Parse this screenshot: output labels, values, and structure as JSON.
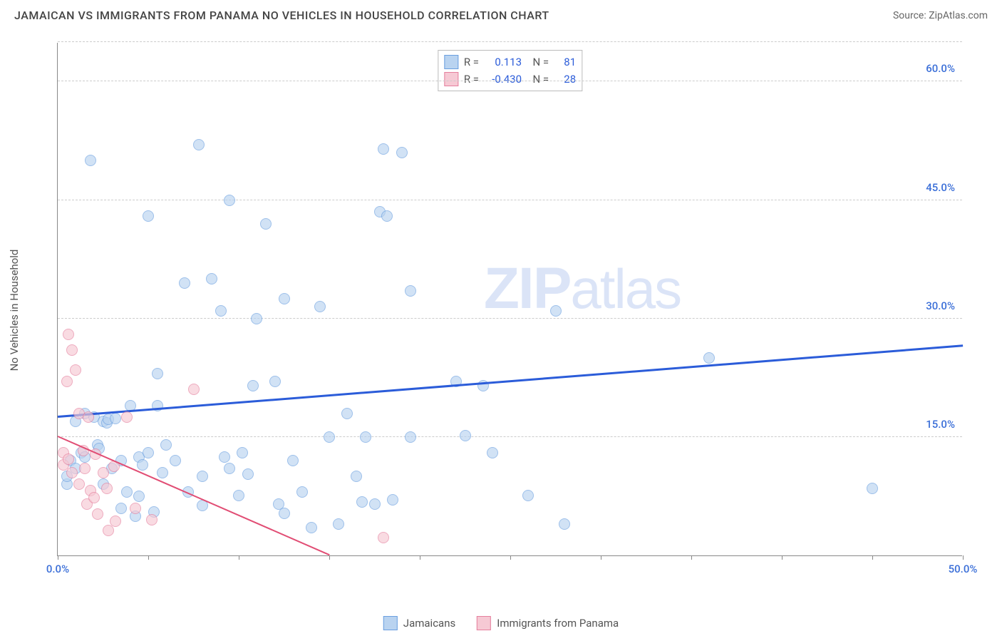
{
  "title": "JAMAICAN VS IMMIGRANTS FROM PANAMA NO VEHICLES IN HOUSEHOLD CORRELATION CHART",
  "source": "Source: ZipAtlas.com",
  "y_axis_label": "No Vehicles in Household",
  "watermark": "ZIPatlas",
  "chart": {
    "type": "scatter",
    "x_min": 0,
    "x_max": 50,
    "y_min": 0,
    "y_max": 65,
    "background_color": "#ffffff",
    "grid_color": "#cccccc",
    "axis_color": "#888888",
    "tick_label_color": "#3b6fd8",
    "y_gridlines": [
      15,
      30,
      45,
      60,
      65
    ],
    "y_tick_labels": [
      {
        "v": 15,
        "label": "15.0%"
      },
      {
        "v": 30,
        "label": "30.0%"
      },
      {
        "v": 45,
        "label": "45.0%"
      },
      {
        "v": 60,
        "label": "60.0%"
      }
    ],
    "x_ticks": [
      0,
      5,
      10,
      15,
      20,
      25,
      30,
      35,
      40,
      45,
      50
    ],
    "x_tick_labels": [
      {
        "v": 0,
        "label": "0.0%"
      },
      {
        "v": 50,
        "label": "50.0%"
      }
    ],
    "point_radius": 8,
    "point_stroke_width": 1.5,
    "series": [
      {
        "name": "Jamaicans",
        "fill": "#b9d3f0",
        "stroke": "#6a9fe0",
        "fill_opacity": 0.65,
        "R": "0.113",
        "N": "81",
        "trend": {
          "color": "#2b5cd9",
          "width": 2.5,
          "x1": 0,
          "y1": 17.5,
          "x2": 50,
          "y2": 26.5
        },
        "points": [
          [
            0.5,
            9
          ],
          [
            0.5,
            10
          ],
          [
            0.7,
            12
          ],
          [
            1,
            11
          ],
          [
            1,
            17
          ],
          [
            1.3,
            13
          ],
          [
            1.5,
            18
          ],
          [
            1.5,
            12.5
          ],
          [
            1.8,
            50
          ],
          [
            2,
            17.5
          ],
          [
            2.2,
            14
          ],
          [
            2.3,
            13.5
          ],
          [
            2.5,
            17
          ],
          [
            2.5,
            9
          ],
          [
            2.7,
            16.8
          ],
          [
            2.8,
            17.2
          ],
          [
            3,
            11
          ],
          [
            3.2,
            17.3
          ],
          [
            3.5,
            6
          ],
          [
            3.5,
            12
          ],
          [
            3.8,
            8
          ],
          [
            4,
            19
          ],
          [
            4.3,
            5
          ],
          [
            4.5,
            7.5
          ],
          [
            4.5,
            12.5
          ],
          [
            4.7,
            11.5
          ],
          [
            5,
            43
          ],
          [
            5,
            13
          ],
          [
            5.3,
            5.5
          ],
          [
            5.5,
            23
          ],
          [
            5.5,
            19
          ],
          [
            5.8,
            10.5
          ],
          [
            6,
            14
          ],
          [
            6.5,
            12
          ],
          [
            7,
            34.5
          ],
          [
            7.2,
            8
          ],
          [
            7.8,
            52
          ],
          [
            8,
            10
          ],
          [
            8,
            6.3
          ],
          [
            8.5,
            35
          ],
          [
            9,
            31
          ],
          [
            9.2,
            12.5
          ],
          [
            9.5,
            11
          ],
          [
            9.5,
            45
          ],
          [
            10,
            7.6
          ],
          [
            10.2,
            13
          ],
          [
            10.5,
            10.3
          ],
          [
            10.8,
            21.5
          ],
          [
            11,
            30
          ],
          [
            11.5,
            42
          ],
          [
            12,
            22
          ],
          [
            12.2,
            6.5
          ],
          [
            12.5,
            5.3
          ],
          [
            12.5,
            32.5
          ],
          [
            13,
            12
          ],
          [
            13.5,
            8
          ],
          [
            14,
            3.5
          ],
          [
            14.5,
            31.5
          ],
          [
            15,
            15
          ],
          [
            15.5,
            4
          ],
          [
            16,
            18
          ],
          [
            16.5,
            10
          ],
          [
            16.8,
            6.8
          ],
          [
            17,
            15
          ],
          [
            17.5,
            6.5
          ],
          [
            17.8,
            43.5
          ],
          [
            18,
            51.5
          ],
          [
            18.2,
            43
          ],
          [
            18.5,
            7
          ],
          [
            19,
            51
          ],
          [
            19.5,
            15
          ],
          [
            19.5,
            33.5
          ],
          [
            22,
            22
          ],
          [
            22.5,
            15.2
          ],
          [
            23.5,
            21.5
          ],
          [
            24,
            13
          ],
          [
            26,
            7.6
          ],
          [
            27.5,
            31
          ],
          [
            28,
            4
          ],
          [
            36,
            25
          ],
          [
            45,
            8.5
          ]
        ]
      },
      {
        "name": "Immigrants from Panama",
        "fill": "#f6c9d4",
        "stroke": "#e57f9d",
        "fill_opacity": 0.65,
        "R": "-0.430",
        "N": "28",
        "trend": {
          "color": "#e14d74",
          "width": 2,
          "x1": 0,
          "y1": 15,
          "x2": 15,
          "y2": 0
        },
        "points": [
          [
            0.3,
            13
          ],
          [
            0.3,
            11.5
          ],
          [
            0.5,
            22
          ],
          [
            0.6,
            28
          ],
          [
            0.6,
            12.2
          ],
          [
            0.8,
            10.5
          ],
          [
            0.8,
            26
          ],
          [
            1,
            23.5
          ],
          [
            1.2,
            18
          ],
          [
            1.2,
            9
          ],
          [
            1.4,
            13.3
          ],
          [
            1.5,
            11
          ],
          [
            1.6,
            6.5
          ],
          [
            1.7,
            17.5
          ],
          [
            1.8,
            8.2
          ],
          [
            2,
            7.3
          ],
          [
            2.1,
            12.8
          ],
          [
            2.2,
            5.2
          ],
          [
            2.5,
            10.5
          ],
          [
            2.7,
            8.5
          ],
          [
            2.8,
            3.2
          ],
          [
            3.1,
            11.3
          ],
          [
            3.2,
            4.3
          ],
          [
            3.8,
            17.5
          ],
          [
            4.3,
            6
          ],
          [
            5.2,
            4.5
          ],
          [
            7.5,
            21
          ],
          [
            18,
            2.3
          ]
        ]
      }
    ]
  },
  "bottom_legend": [
    {
      "label": "Jamaicans",
      "fill": "#b9d3f0",
      "stroke": "#6a9fe0"
    },
    {
      "label": "Immigrants from Panama",
      "fill": "#f6c9d4",
      "stroke": "#e57f9d"
    }
  ]
}
